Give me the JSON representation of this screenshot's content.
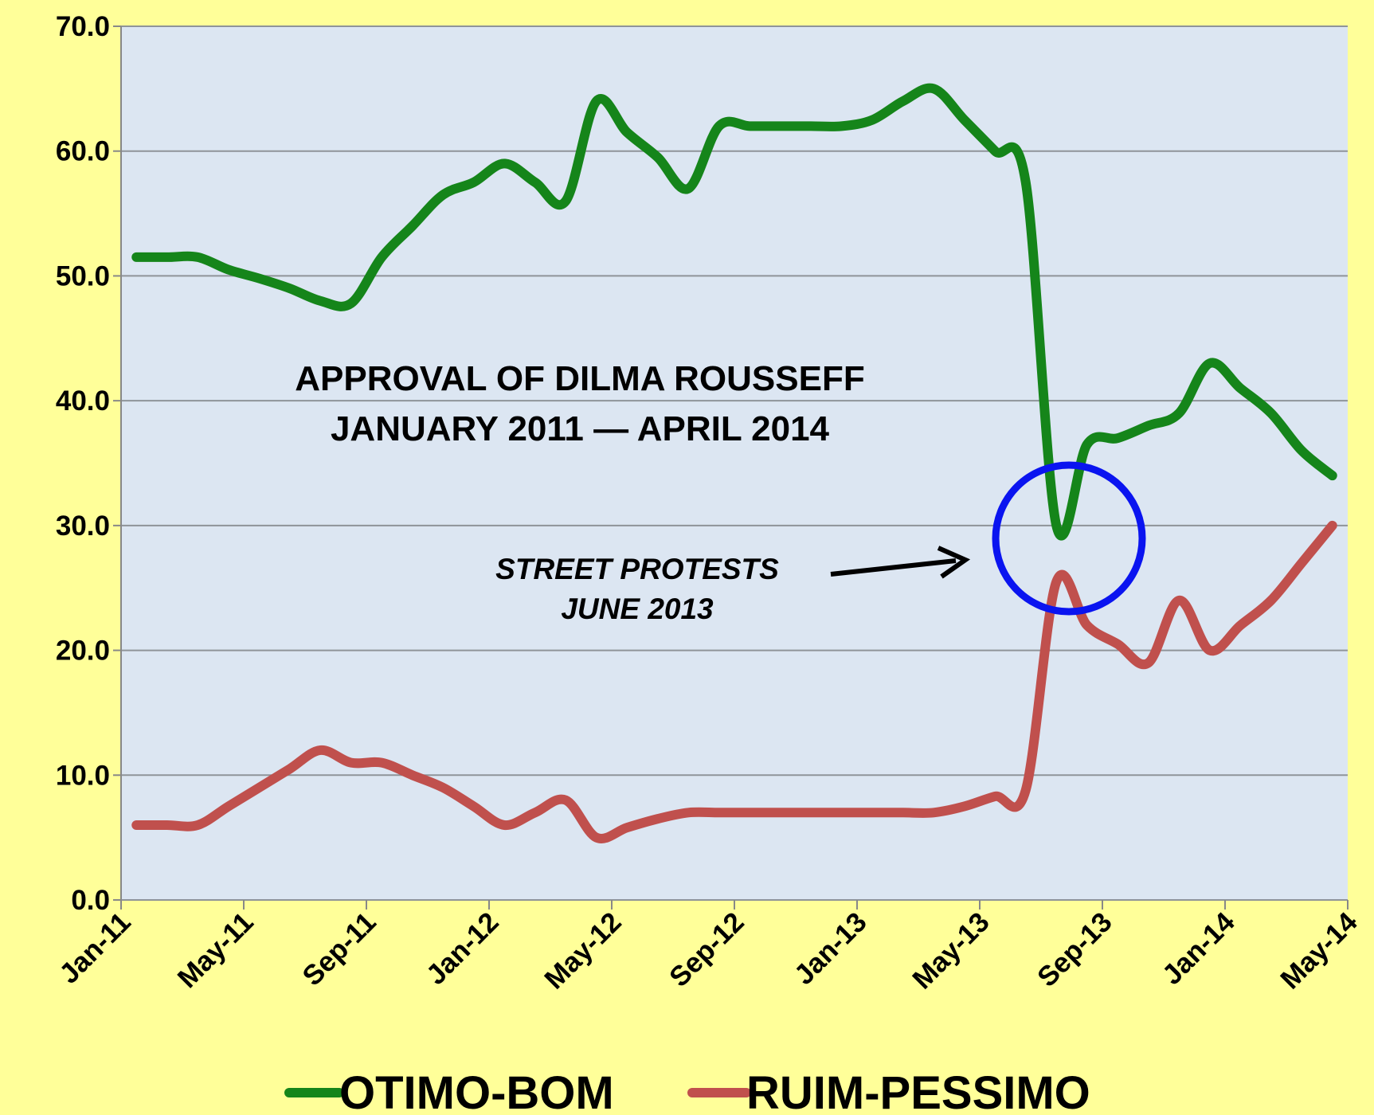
{
  "chart_data": {
    "type": "line",
    "title": [
      "APPROVAL OF DILMA ROUSSEFF",
      "JANUARY 2011 — APRIL 2014"
    ],
    "annotations": [
      "STREET PROTESTS",
      "JUNE 2013"
    ],
    "x": [
      "2011-01",
      "2011-02",
      "2011-03",
      "2011-04",
      "2011-05",
      "2011-06",
      "2011-07",
      "2011-08",
      "2011-09",
      "2011-10",
      "2011-11",
      "2011-12",
      "2012-01",
      "2012-02",
      "2012-03",
      "2012-04",
      "2012-05",
      "2012-06",
      "2012-07",
      "2012-08",
      "2012-09",
      "2012-10",
      "2012-11",
      "2012-12",
      "2013-01",
      "2013-02",
      "2013-03",
      "2013-04",
      "2013-05",
      "2013-06",
      "2013-07",
      "2013-08",
      "2013-09",
      "2013-10",
      "2013-11",
      "2013-12",
      "2014-01",
      "2014-02",
      "2014-03",
      "2014-04"
    ],
    "series": [
      {
        "name": "OTIMO-BOM",
        "color": "#15851a",
        "values": [
          51.5,
          51.5,
          51.5,
          50.5,
          49.8,
          49,
          48,
          47.8,
          51.5,
          54,
          56.5,
          57.5,
          59,
          57.5,
          56,
          64,
          61.5,
          59.5,
          57,
          62,
          62,
          62,
          62,
          62,
          62.5,
          64,
          65,
          62.5,
          60,
          57.5,
          30,
          36.5,
          37,
          38,
          39,
          43,
          41,
          39,
          36,
          34
        ]
      },
      {
        "name": "RUIM-PESSIMO",
        "color": "#c0504d",
        "values": [
          6,
          6,
          6,
          7.5,
          9,
          10.5,
          12,
          11,
          11,
          10,
          9,
          7.5,
          6,
          7,
          8,
          5,
          5.8,
          6.5,
          7,
          7,
          7,
          7,
          7,
          7,
          7,
          7,
          7,
          7.5,
          8.3,
          8.8,
          25.5,
          22,
          20.5,
          19,
          24,
          20,
          22,
          24,
          27,
          30
        ]
      }
    ],
    "xlim": [
      "2011-01",
      "2014-05"
    ],
    "xticks": [
      {
        "value": "2011-01",
        "label": "Jan-11"
      },
      {
        "value": "2011-05",
        "label": "May-11"
      },
      {
        "value": "2011-09",
        "label": "Sep-11"
      },
      {
        "value": "2012-01",
        "label": "Jan-12"
      },
      {
        "value": "2012-05",
        "label": "May-12"
      },
      {
        "value": "2012-09",
        "label": "Sep-12"
      },
      {
        "value": "2013-01",
        "label": "Jan-13"
      },
      {
        "value": "2013-05",
        "label": "May-13"
      },
      {
        "value": "2013-09",
        "label": "Sep-13"
      },
      {
        "value": "2014-01",
        "label": "Jan-14"
      },
      {
        "value": "2014-05",
        "label": "May-14"
      }
    ],
    "ylim": [
      0,
      70
    ],
    "yticks": [
      {
        "value": 0,
        "label": "0.0"
      },
      {
        "value": 10,
        "label": "10.0"
      },
      {
        "value": 20,
        "label": "20.0"
      },
      {
        "value": 30,
        "label": "30.0"
      },
      {
        "value": 40,
        "label": "40.0"
      },
      {
        "value": 50,
        "label": "50.0"
      },
      {
        "value": 60,
        "label": "60.0"
      },
      {
        "value": 70,
        "label": "70.0"
      }
    ],
    "grid": true,
    "legend": "bottom"
  }
}
